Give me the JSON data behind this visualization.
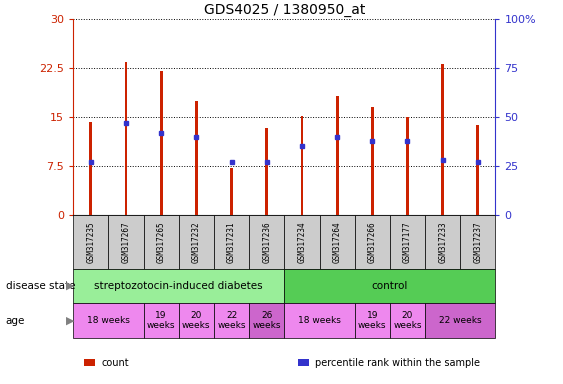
{
  "title": "GDS4025 / 1380950_at",
  "samples": [
    "GSM317235",
    "GSM317267",
    "GSM317265",
    "GSM317232",
    "GSM317231",
    "GSM317236",
    "GSM317234",
    "GSM317264",
    "GSM317266",
    "GSM317177",
    "GSM317233",
    "GSM317237"
  ],
  "counts": [
    14.3,
    23.5,
    22.0,
    17.5,
    7.2,
    13.3,
    15.2,
    18.2,
    16.5,
    15.0,
    23.2,
    13.8
  ],
  "percentile_ranks": [
    27,
    47,
    42,
    40,
    27,
    27,
    35,
    40,
    38,
    38,
    28,
    27
  ],
  "bar_color": "#cc2200",
  "percentile_color": "#3333cc",
  "ylim_left": [
    0,
    30
  ],
  "ylim_right": [
    0,
    100
  ],
  "yticks_left": [
    0,
    7.5,
    15,
    22.5,
    30
  ],
  "ytick_labels_left": [
    "0",
    "7.5",
    "15",
    "22.5",
    "30"
  ],
  "yticks_right": [
    0,
    25,
    50,
    75,
    100
  ],
  "ytick_labels_right": [
    "0",
    "25",
    "50",
    "75",
    "100%"
  ],
  "disease_state_groups": [
    {
      "label": "streptozotocin-induced diabetes",
      "color": "#99ee99",
      "start": 0,
      "end": 6
    },
    {
      "label": "control",
      "color": "#55cc55",
      "start": 6,
      "end": 12
    }
  ],
  "age_groups": [
    {
      "label": "18 weeks",
      "color": "#ee88ee",
      "start": 0,
      "end": 2
    },
    {
      "label": "19\nweeks",
      "color": "#ee88ee",
      "start": 2,
      "end": 3
    },
    {
      "label": "20\nweeks",
      "color": "#ee88ee",
      "start": 3,
      "end": 4
    },
    {
      "label": "22\nweeks",
      "color": "#ee88ee",
      "start": 4,
      "end": 5
    },
    {
      "label": "26\nweeks",
      "color": "#cc66cc",
      "start": 5,
      "end": 6
    },
    {
      "label": "18 weeks",
      "color": "#ee88ee",
      "start": 6,
      "end": 8
    },
    {
      "label": "19\nweeks",
      "color": "#ee88ee",
      "start": 8,
      "end": 9
    },
    {
      "label": "20\nweeks",
      "color": "#ee88ee",
      "start": 9,
      "end": 10
    },
    {
      "label": "22 weeks",
      "color": "#cc66cc",
      "start": 10,
      "end": 12
    }
  ],
  "legend_items": [
    {
      "label": "count",
      "color": "#cc2200"
    },
    {
      "label": "percentile rank within the sample",
      "color": "#3333cc"
    }
  ],
  "axis_color_left": "#cc2200",
  "axis_color_right": "#3333cc",
  "background_color": "white",
  "tick_label_bg": "#cccccc",
  "bar_width": 0.08
}
